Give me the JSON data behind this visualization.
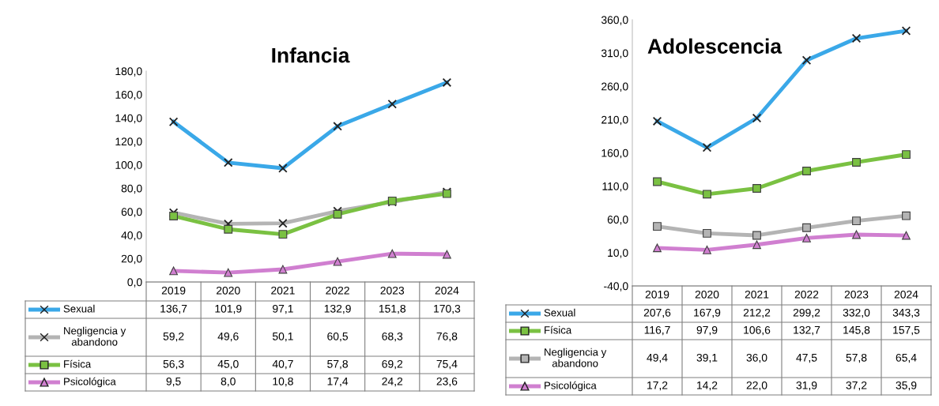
{
  "chart_data": [
    {
      "type": "line",
      "title": "Infancia",
      "legend": "bottom",
      "categories": [
        "2019",
        "2020",
        "2021",
        "2022",
        "2023",
        "2024"
      ],
      "ylim": [
        0,
        180
      ],
      "yticks": [
        {
          "value": 0,
          "label": "0,0"
        },
        {
          "value": 20,
          "label": "20,0"
        },
        {
          "value": 40,
          "label": "40,0"
        },
        {
          "value": 60,
          "label": "60,0"
        },
        {
          "value": 80,
          "label": "80,0"
        },
        {
          "value": 100,
          "label": "100,0"
        },
        {
          "value": 120,
          "label": "120,0"
        },
        {
          "value": 140,
          "label": "140,0"
        },
        {
          "value": 160,
          "label": "160,0"
        },
        {
          "value": 180,
          "label": "180,0"
        }
      ],
      "series": [
        {
          "name": "Sexual",
          "color": "#3aa8e8",
          "marker": "cross",
          "values": [
            136.7,
            101.9,
            97.1,
            132.9,
            151.8,
            170.3
          ],
          "value_labels": [
            "136,7",
            "101,9",
            "97,1",
            "132,9",
            "151,8",
            "170,3"
          ]
        },
        {
          "name": "Negligencia y abandono",
          "color": "#b4b4b4",
          "marker": "cross",
          "values": [
            59.2,
            49.6,
            50.1,
            60.5,
            68.3,
            76.8
          ],
          "value_labels": [
            "59,2",
            "49,6",
            "50,1",
            "60,5",
            "68,3",
            "76,8"
          ]
        },
        {
          "name": "Física",
          "color": "#7ac142",
          "marker": "square",
          "values": [
            56.3,
            45.0,
            40.7,
            57.8,
            69.2,
            75.4
          ],
          "value_labels": [
            "56,3",
            "45,0",
            "40,7",
            "57,8",
            "69,2",
            "75,4"
          ]
        },
        {
          "name": "Psicológica",
          "color": "#d07fd0",
          "marker": "triangle",
          "values": [
            9.5,
            8.0,
            10.8,
            17.4,
            24.2,
            23.6
          ],
          "value_labels": [
            "9,5",
            "8,0",
            "10,8",
            "17,4",
            "24,2",
            "23,6"
          ]
        }
      ]
    },
    {
      "type": "line",
      "title": "Adolescencia",
      "legend": "bottom",
      "categories": [
        "2019",
        "2020",
        "2021",
        "2022",
        "2023",
        "2024"
      ],
      "ylim": [
        -40,
        360
      ],
      "yticks": [
        {
          "value": -40,
          "label": "-40,0"
        },
        {
          "value": 10,
          "label": "10,0"
        },
        {
          "value": 60,
          "label": "60,0"
        },
        {
          "value": 110,
          "label": "110,0"
        },
        {
          "value": 160,
          "label": "160,0"
        },
        {
          "value": 210,
          "label": "210,0"
        },
        {
          "value": 260,
          "label": "260,0"
        },
        {
          "value": 310,
          "label": "310,0"
        },
        {
          "value": 360,
          "label": "360,0"
        }
      ],
      "series": [
        {
          "name": "Sexual",
          "color": "#3aa8e8",
          "marker": "cross",
          "values": [
            207.6,
            167.9,
            212.2,
            299.2,
            332.0,
            343.3
          ],
          "value_labels": [
            "207,6",
            "167,9",
            "212,2",
            "299,2",
            "332,0",
            "343,3"
          ]
        },
        {
          "name": "Física",
          "color": "#7ac142",
          "marker": "square",
          "values": [
            116.7,
            97.9,
            106.6,
            132.7,
            145.8,
            157.5
          ],
          "value_labels": [
            "116,7",
            "97,9",
            "106,6",
            "132,7",
            "145,8",
            "157,5"
          ]
        },
        {
          "name": "Negligencia y abandono",
          "color": "#b4b4b4",
          "marker": "square",
          "values": [
            49.4,
            39.1,
            36.0,
            47.5,
            57.8,
            65.4
          ],
          "value_labels": [
            "49,4",
            "39,1",
            "36,0",
            "47,5",
            "57,8",
            "65,4"
          ]
        },
        {
          "name": "Psicológica",
          "color": "#d07fd0",
          "marker": "triangle",
          "values": [
            17.2,
            14.2,
            22.0,
            31.9,
            37.2,
            35.9
          ],
          "value_labels": [
            "17,2",
            "14,2",
            "22,0",
            "31,9",
            "37,2",
            "35,9"
          ]
        }
      ]
    }
  ]
}
